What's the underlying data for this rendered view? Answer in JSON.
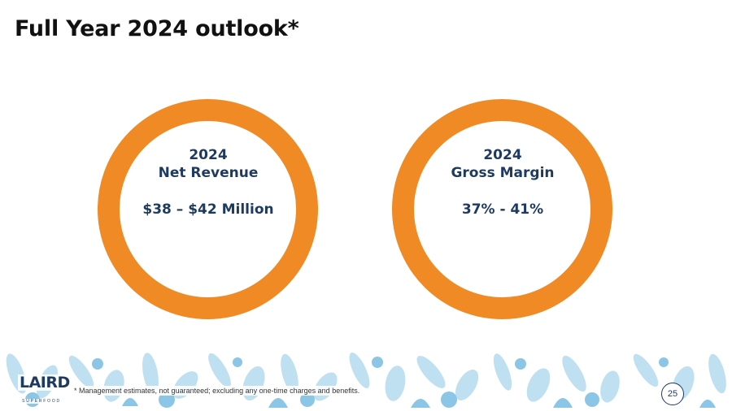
{
  "slide": {
    "title": "Full Year 2024 outlook*"
  },
  "outlook": [
    {
      "year": "2024",
      "label": "Net Revenue",
      "value": "$38 – $42 Million"
    },
    {
      "year": "2024",
      "label": "Gross Margin",
      "value": "37% - 41%"
    }
  ],
  "footer": {
    "logo_text": "LAIRD",
    "logo_subtext": "SUPERFOOD",
    "footnote": "* Management estimates, not guaranteed; excluding any one-time charges and benefits.",
    "page_number": "25"
  },
  "colors": {
    "ring": "#F08A24",
    "text_navy": "#1E3A5F",
    "leaf_light": "#BFE0F0",
    "leaf_mid": "#8CC6E6"
  },
  "icons": [
    "leaf-pattern-icon"
  ]
}
